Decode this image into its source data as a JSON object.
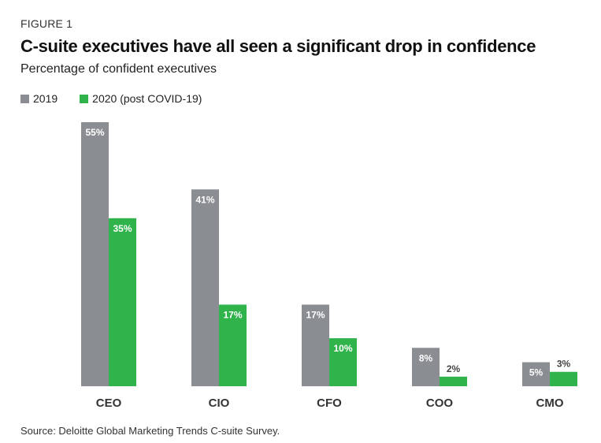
{
  "figure_label": "FIGURE 1",
  "title": "C-suite executives have all seen a significant drop in confidence",
  "subtitle": "Percentage of confident executives",
  "source": "Source: Deloitte Global Marketing Trends C-suite Survey.",
  "colors": {
    "series_2019": "#8a8d91",
    "series_2020": "#2fb34a"
  },
  "chart_data": {
    "type": "bar",
    "title": "C-suite executives have all seen a significant drop in confidence",
    "ylabel": "",
    "xlabel": "",
    "categories": [
      "CEO",
      "CIO",
      "CFO",
      "COO",
      "CMO"
    ],
    "series": [
      {
        "name": "2019",
        "values": [
          55,
          41,
          17,
          8,
          5
        ],
        "labels": [
          "55%",
          "41%",
          "17%",
          "8%",
          "5%"
        ]
      },
      {
        "name": "2020 (post COVID-19)",
        "values": [
          35,
          17,
          10,
          2,
          3
        ],
        "labels": [
          "35%",
          "17%",
          "10%",
          "2%",
          "3%"
        ]
      }
    ],
    "ylim": [
      0,
      55
    ],
    "grid": false,
    "legend_position": "top-left"
  }
}
